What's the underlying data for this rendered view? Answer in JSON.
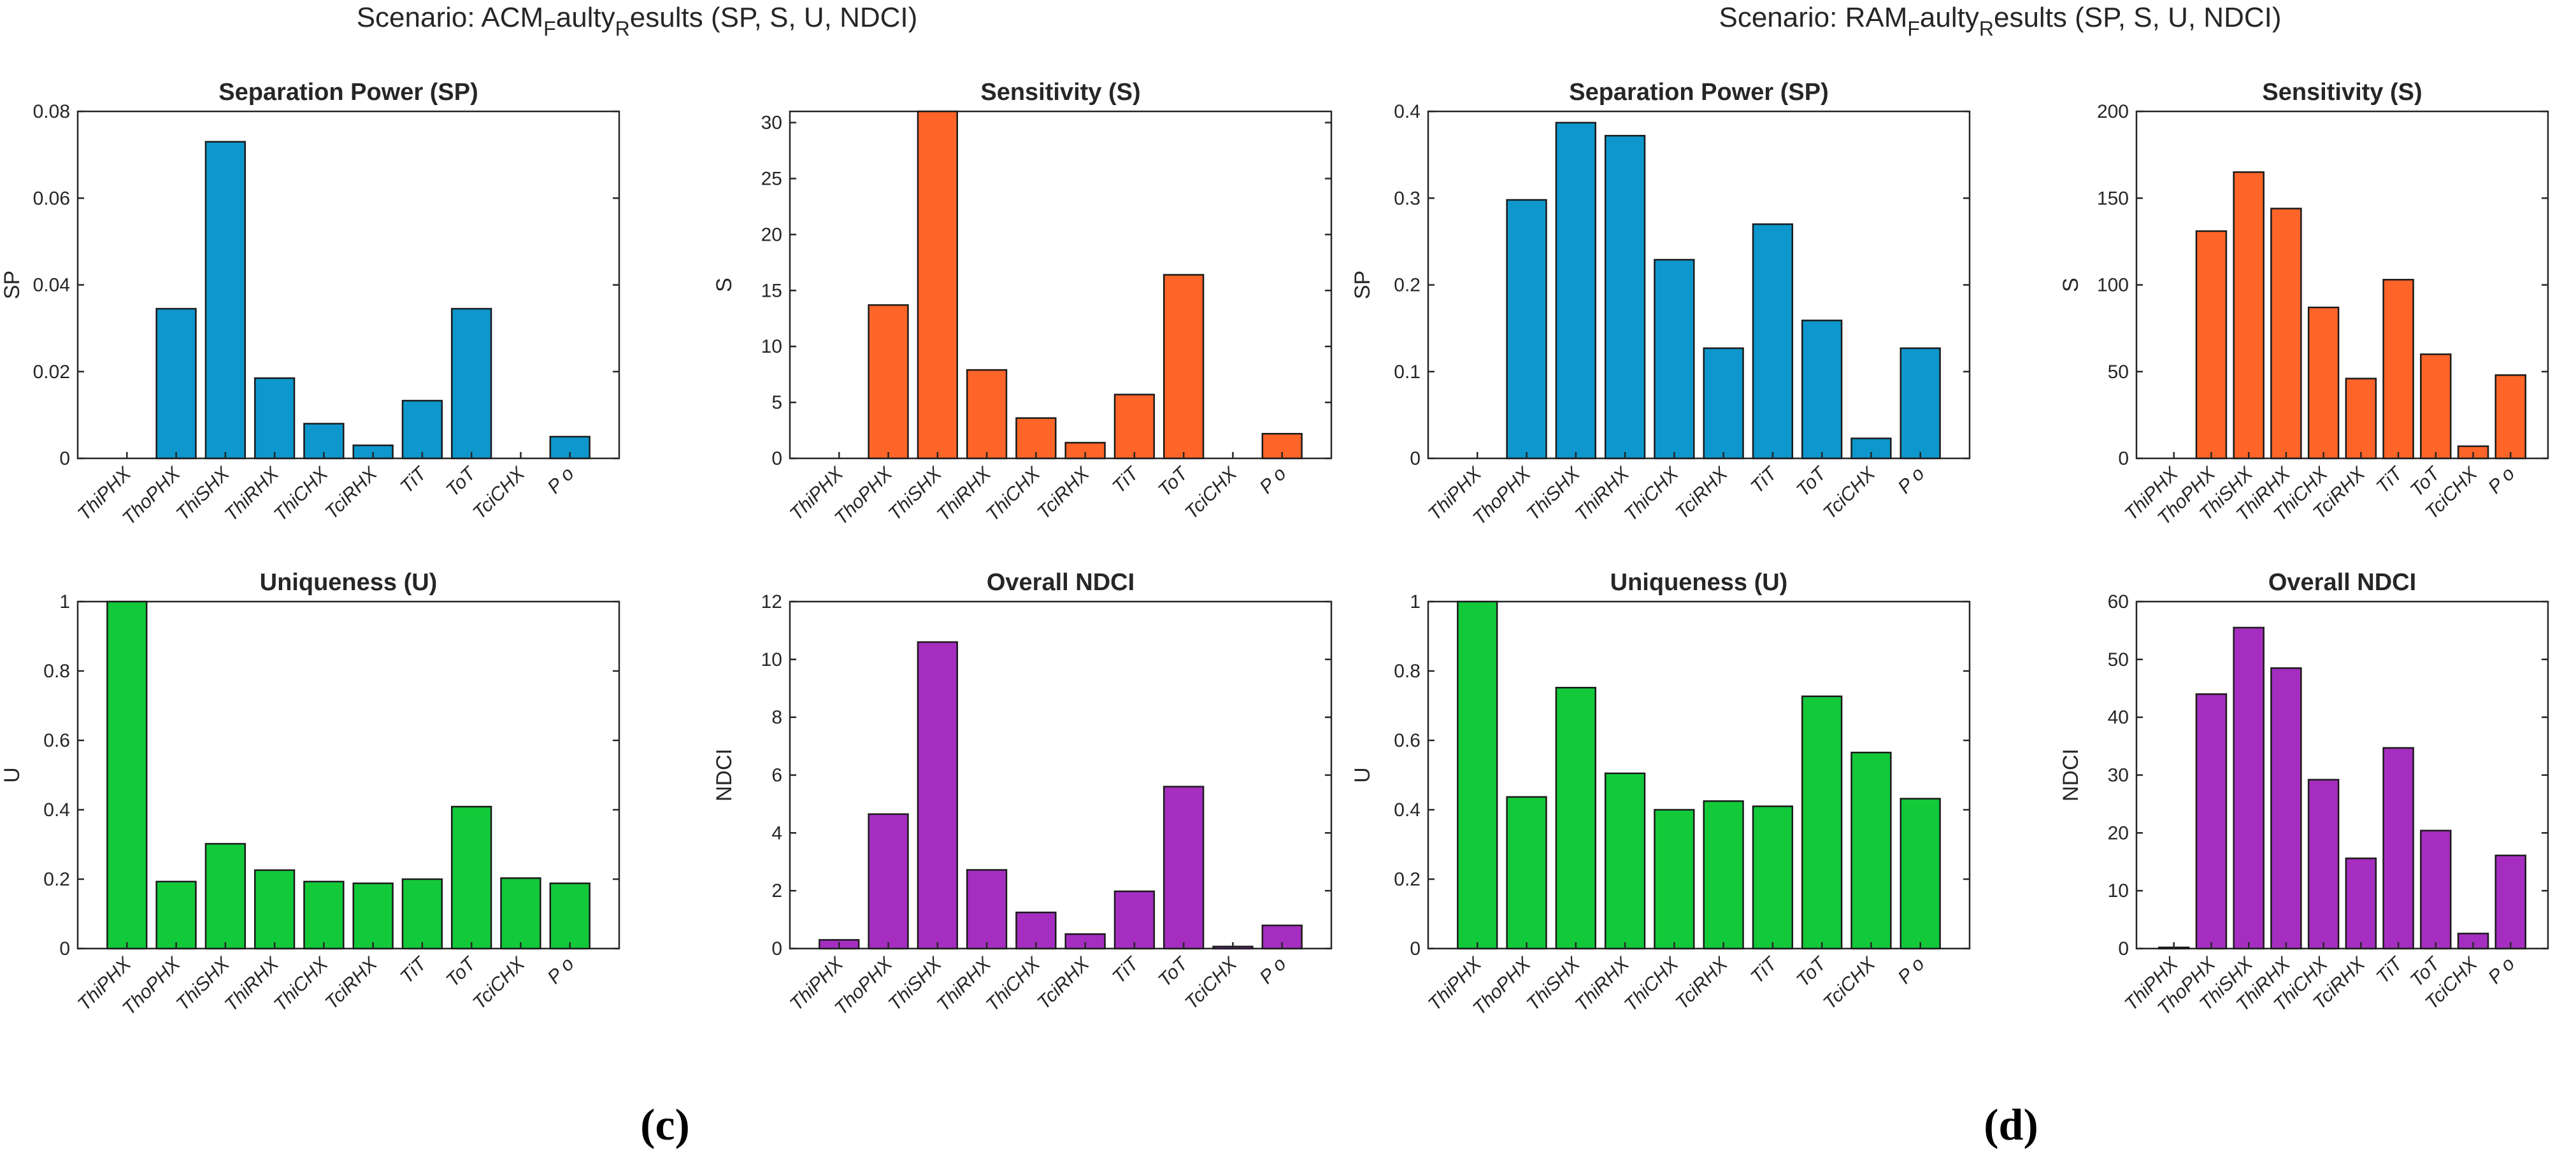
{
  "figure": {
    "panel_c_label": "(c)",
    "panel_d_label": "(d)",
    "scenario_c": {
      "prefix": "Scenario: ACM",
      "sub1": "F",
      "mid": "aulty",
      "sub2": "R",
      "suffix": "esults  (SP, S, U, NDCI)"
    },
    "scenario_d": {
      "prefix": "Scenario: RAM",
      "sub1": "F",
      "mid": "aulty",
      "sub2": "R",
      "suffix": "esults  (SP, S, U, NDCI)"
    }
  },
  "colors": {
    "sp": "#0d97cc",
    "s": "#ff6428",
    "u": "#12c93a",
    "ndci": "#a52ec0"
  },
  "chart_data": [
    {
      "id": "c-sp",
      "type": "bar",
      "title": "Separation Power (SP)",
      "ylabel": "SP",
      "color_key": "sp",
      "ylim": [
        0,
        0.08
      ],
      "yticks": [
        0,
        0.02,
        0.04,
        0.06,
        0.08
      ],
      "ytick_labels": [
        "0",
        "0.02",
        "0.04",
        "0.06",
        "0.08"
      ],
      "categories": [
        "ThiPHX",
        "ThoPHX",
        "ThiSHX",
        "ThiRHX",
        "ThiCHX",
        "TciRHX",
        "TiT",
        "ToT",
        "TciCHX",
        "P o"
      ],
      "values": [
        0,
        0.0345,
        0.073,
        0.0185,
        0.008,
        0.003,
        0.0133,
        0.0345,
        0,
        0.005
      ]
    },
    {
      "id": "c-s",
      "type": "bar",
      "title": "Sensitivity (S)",
      "ylabel": "S",
      "color_key": "s",
      "ylim": [
        0,
        31
      ],
      "yticks": [
        0,
        5,
        10,
        15,
        20,
        25,
        30
      ],
      "ytick_labels": [
        "0",
        "5",
        "10",
        "15",
        "20",
        "25",
        "30"
      ],
      "categories": [
        "ThiPHX",
        "ThoPHX",
        "ThiSHX",
        "ThiRHX",
        "ThiCHX",
        "TciRHX",
        "TiT",
        "ToT",
        "TciCHX",
        "P o"
      ],
      "values": [
        0,
        13.7,
        31,
        7.9,
        3.6,
        1.4,
        5.7,
        16.4,
        0,
        2.2
      ]
    },
    {
      "id": "d-sp",
      "type": "bar",
      "title": "Separation Power (SP)",
      "ylabel": "SP",
      "color_key": "sp",
      "ylim": [
        0,
        0.4
      ],
      "yticks": [
        0,
        0.1,
        0.2,
        0.3,
        0.4
      ],
      "ytick_labels": [
        "0",
        "0.1",
        "0.2",
        "0.3",
        "0.4"
      ],
      "categories": [
        "ThiPHX",
        "ThoPHX",
        "ThiSHX",
        "ThiRHX",
        "ThiCHX",
        "TciRHX",
        "TiT",
        "ToT",
        "TciCHX",
        "P o"
      ],
      "values": [
        0,
        0.298,
        0.387,
        0.372,
        0.229,
        0.127,
        0.27,
        0.159,
        0.023,
        0.127
      ]
    },
    {
      "id": "d-s",
      "type": "bar",
      "title": "Sensitivity (S)",
      "ylabel": "S",
      "color_key": "s",
      "ylim": [
        0,
        200
      ],
      "yticks": [
        0,
        50,
        100,
        150,
        200
      ],
      "ytick_labels": [
        "0",
        "50",
        "100",
        "150",
        "200"
      ],
      "categories": [
        "ThiPHX",
        "ThoPHX",
        "ThiSHX",
        "ThiRHX",
        "ThiCHX",
        "TciRHX",
        "TiT",
        "ToT",
        "TciCHX",
        "P o"
      ],
      "values": [
        0,
        131,
        165,
        144,
        87,
        46,
        103,
        60,
        7,
        48
      ]
    },
    {
      "id": "c-u",
      "type": "bar",
      "title": "Uniqueness (U)",
      "ylabel": "U",
      "color_key": "u",
      "ylim": [
        0,
        1
      ],
      "yticks": [
        0,
        0.2,
        0.4,
        0.6,
        0.8,
        1
      ],
      "ytick_labels": [
        "0",
        "0.2",
        "0.4",
        "0.6",
        "0.8",
        "1"
      ],
      "categories": [
        "ThiPHX",
        "ThoPHX",
        "ThiSHX",
        "ThiRHX",
        "ThiCHX",
        "TciRHX",
        "TiT",
        "ToT",
        "TciCHX",
        "P o"
      ],
      "values": [
        1,
        0.193,
        0.302,
        0.226,
        0.193,
        0.188,
        0.2,
        0.409,
        0.203,
        0.188
      ]
    },
    {
      "id": "c-ndci",
      "type": "bar",
      "title": "Overall NDCI",
      "ylabel": "NDCI",
      "color_key": "ndci",
      "ylim": [
        0,
        12
      ],
      "yticks": [
        0,
        2,
        4,
        6,
        8,
        10,
        12
      ],
      "ytick_labels": [
        "0",
        "2",
        "4",
        "6",
        "8",
        "10",
        "12"
      ],
      "categories": [
        "ThiPHX",
        "ThoPHX",
        "ThiSHX",
        "ThiRHX",
        "ThiCHX",
        "TciRHX",
        "TiT",
        "ToT",
        "TciCHX",
        "P o"
      ],
      "values": [
        0.3,
        4.65,
        10.6,
        2.72,
        1.25,
        0.5,
        1.98,
        5.6,
        0.07,
        0.8
      ]
    },
    {
      "id": "d-u",
      "type": "bar",
      "title": "Uniqueness (U)",
      "ylabel": "U",
      "color_key": "u",
      "ylim": [
        0,
        1
      ],
      "yticks": [
        0,
        0.2,
        0.4,
        0.6,
        0.8,
        1
      ],
      "ytick_labels": [
        "0",
        "0.2",
        "0.4",
        "0.6",
        "0.8",
        "1"
      ],
      "categories": [
        "ThiPHX",
        "ThoPHX",
        "ThiSHX",
        "ThiRHX",
        "ThiCHX",
        "TciRHX",
        "TiT",
        "ToT",
        "TciCHX",
        "P o"
      ],
      "values": [
        1,
        0.437,
        0.752,
        0.505,
        0.4,
        0.425,
        0.41,
        0.727,
        0.565,
        0.432
      ]
    },
    {
      "id": "d-ndci",
      "type": "bar",
      "title": "Overall NDCI",
      "ylabel": "NDCI",
      "color_key": "ndci",
      "ylim": [
        0,
        60
      ],
      "yticks": [
        0,
        10,
        20,
        30,
        40,
        50,
        60
      ],
      "ytick_labels": [
        "0",
        "10",
        "20",
        "30",
        "40",
        "50",
        "60"
      ],
      "categories": [
        "ThiPHX",
        "ThoPHX",
        "ThiSHX",
        "ThiRHX",
        "ThiCHX",
        "TciRHX",
        "TiT",
        "ToT",
        "TciCHX",
        "P o"
      ],
      "values": [
        0.2,
        44,
        55.5,
        48.5,
        29.2,
        15.6,
        34.7,
        20.4,
        2.6,
        16.1
      ]
    }
  ]
}
